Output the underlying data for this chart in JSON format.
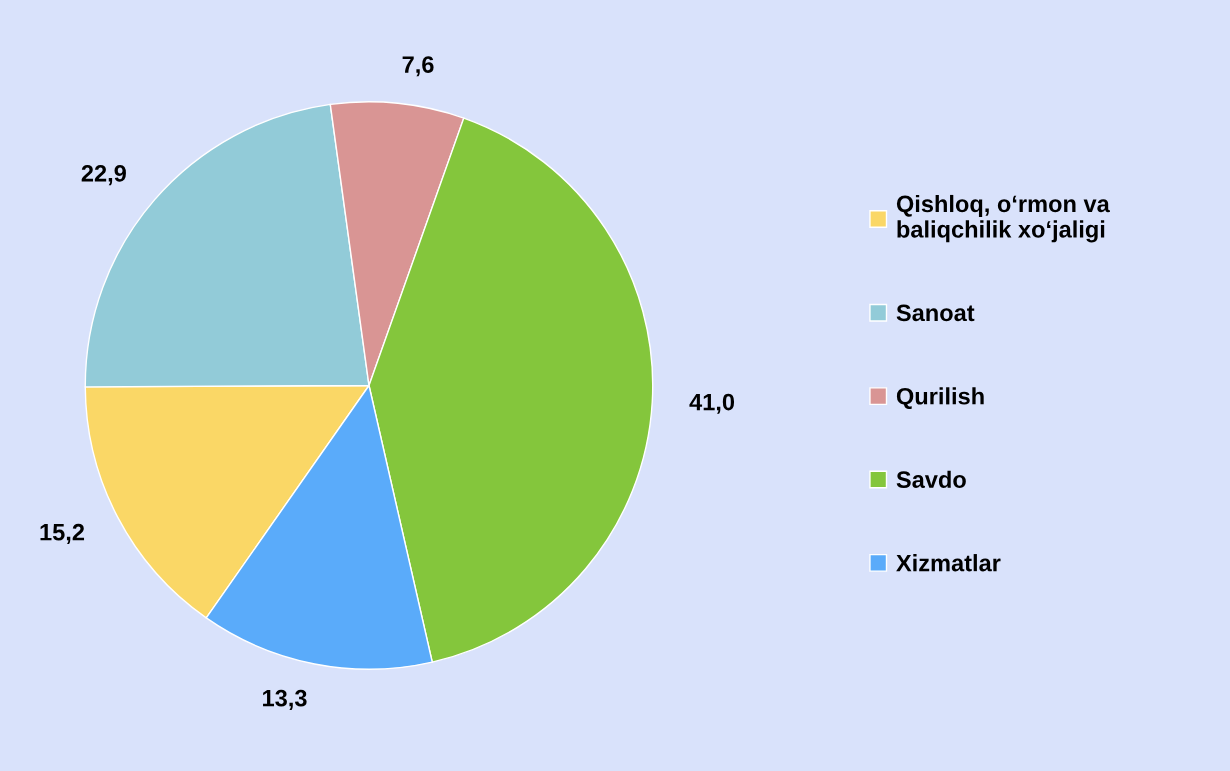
{
  "chart_data": {
    "type": "pie",
    "categories": [
      "Qishloq, o‘rmon va\nbaliqchilik xo‘jaligi",
      "Sanoat",
      "Qurilish",
      "Savdo",
      "Xizmatlar"
    ],
    "values": [
      15.2,
      22.9,
      7.6,
      41.0,
      13.3
    ],
    "value_labels": [
      "15,2",
      "22,9",
      "7,6",
      "41,0",
      "13,3"
    ],
    "colors": [
      "#fad766",
      "#92cbd8",
      "#d99594",
      "#84c63c",
      "#5aabfa"
    ],
    "legend": "right"
  }
}
